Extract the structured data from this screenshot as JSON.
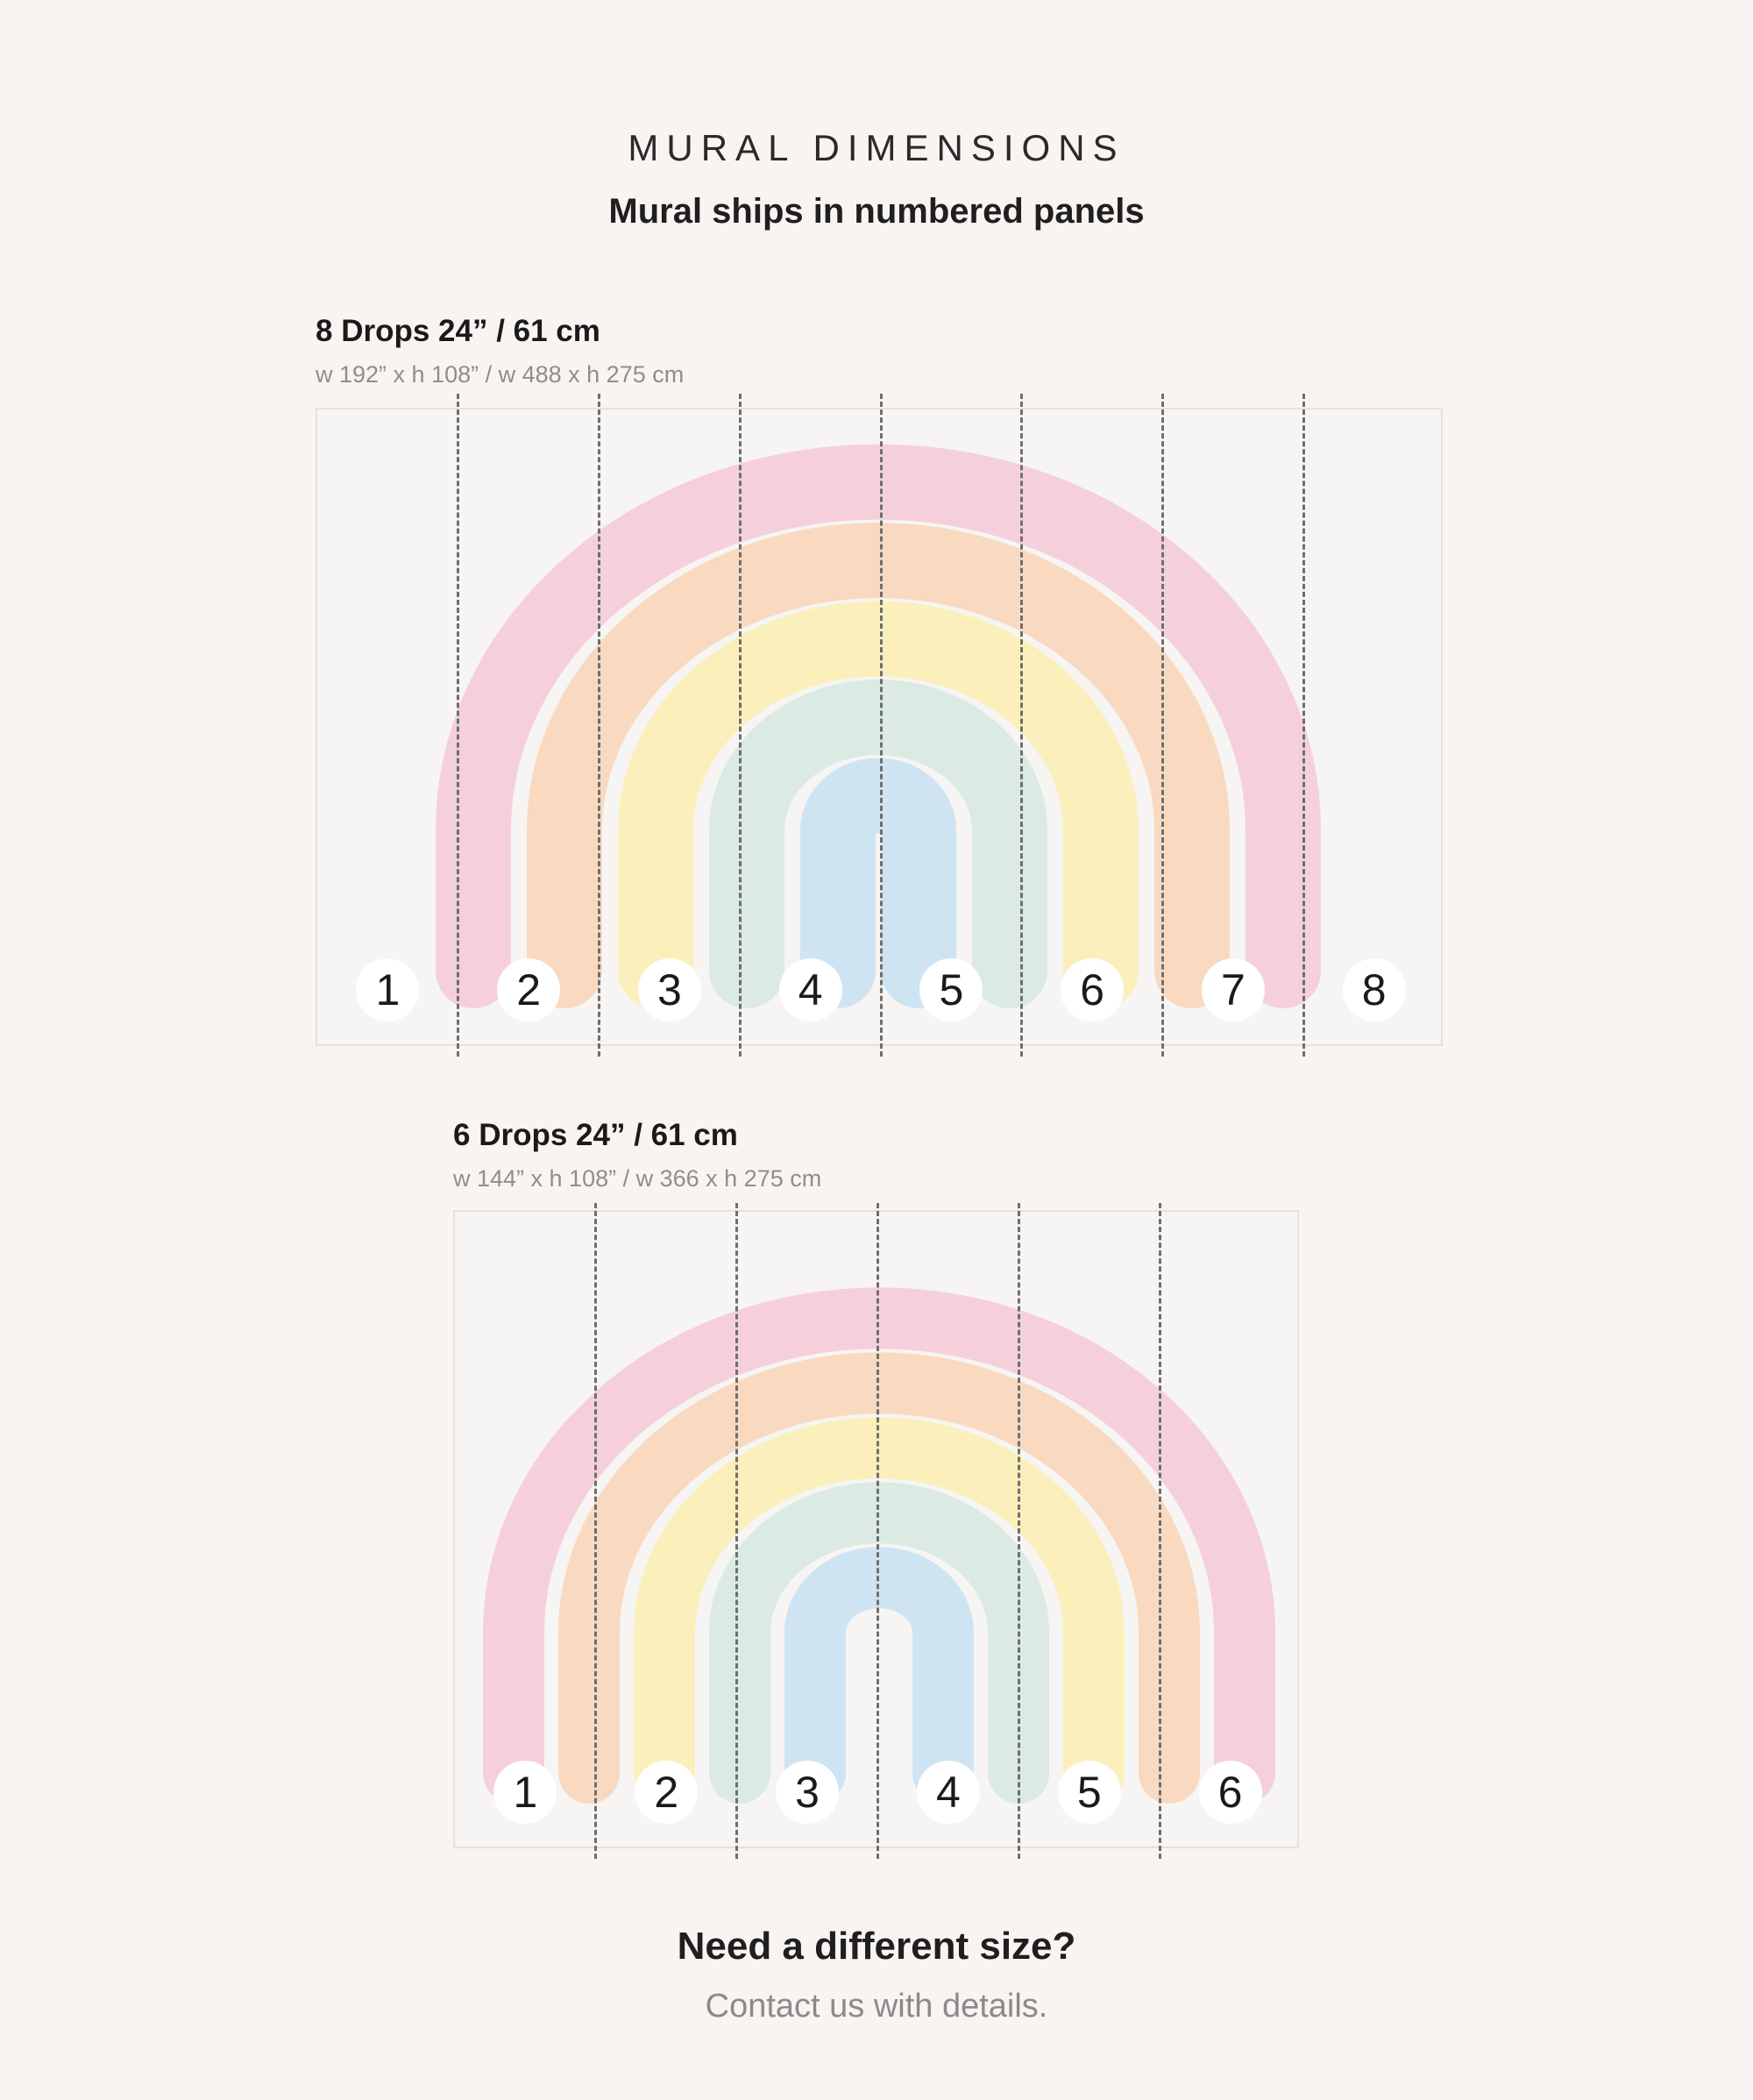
{
  "header": {
    "title": "MURAL DIMENSIONS",
    "subtitle": "Mural ships in numbered panels"
  },
  "options": [
    {
      "title": "8 Drops 24” / 61 cm",
      "dims": "w 192” x h 108” / w 488 x h 275 cm",
      "panels": [
        "1",
        "2",
        "3",
        "4",
        "5",
        "6",
        "7",
        "8"
      ]
    },
    {
      "title": "6 Drops 24” / 61 cm",
      "dims": "w 144” x h 108” / w 366 x h 275 cm",
      "panels": [
        "1",
        "2",
        "3",
        "4",
        "5",
        "6"
      ]
    }
  ],
  "rainbow_colors": [
    "#f5c9d6",
    "#f9d5b6",
    "#fbefb0",
    "#d6e8df",
    "#c7e0f1"
  ],
  "footer": {
    "title": "Need a different size?",
    "text": "Contact us with details."
  }
}
